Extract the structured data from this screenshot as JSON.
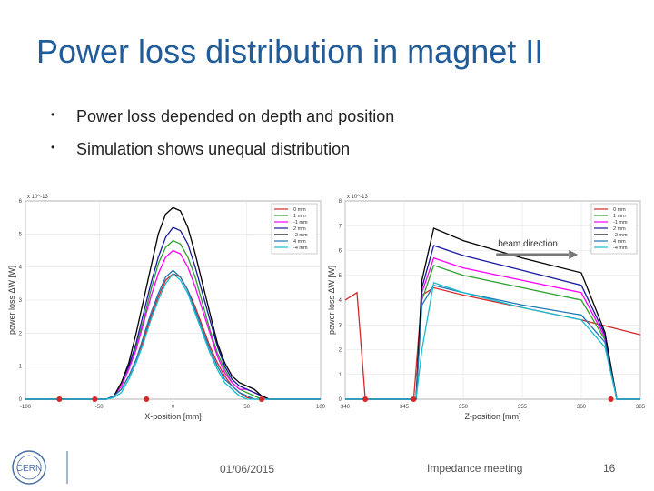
{
  "slide": {
    "title": "Power loss distribution in magnet II",
    "bullets": [
      "Power loss depended on depth and position",
      "Simulation shows unequal distribution"
    ],
    "footer": {
      "date": "01/06/2015",
      "meeting": "Impedance meeting",
      "page": "16"
    },
    "logo_text": "CERN"
  },
  "chart_data": [
    {
      "type": "line",
      "xlabel": "X-position [mm]",
      "ylabel": "power loss ΔW [W]",
      "exponent": "x 10^-13",
      "xlim": [
        -100,
        100
      ],
      "ylim": [
        0,
        6
      ],
      "xticks": [
        -100,
        -50,
        0,
        50,
        100
      ],
      "xtick_labels": [
        "-100",
        "-50",
        "0",
        "50",
        "100"
      ],
      "yticks": [
        0,
        1,
        2,
        3,
        4,
        5,
        6
      ],
      "ytick_labels": [
        "0",
        "1",
        "2",
        "3",
        "4",
        "5",
        "6"
      ],
      "legend": "top-right",
      "grid": true,
      "x": [
        -100,
        -90,
        -80,
        -70,
        -60,
        -50,
        -45,
        -40,
        -35,
        -30,
        -25,
        -20,
        -15,
        -10,
        -5,
        0,
        5,
        10,
        15,
        20,
        25,
        30,
        35,
        40,
        45,
        50,
        55,
        60,
        65,
        70,
        80,
        90,
        100
      ],
      "series": [
        {
          "name": "0 mm",
          "color": "#d62728",
          "values": [
            0,
            0,
            0,
            0,
            0,
            0,
            0,
            0.1,
            0.3,
            0.7,
            1.2,
            1.8,
            2.5,
            3.1,
            3.6,
            3.8,
            3.7,
            3.3,
            2.8,
            2.2,
            1.6,
            1.1,
            0.7,
            0.4,
            0.2,
            0.05,
            0,
            0,
            0,
            0,
            0,
            0,
            0
          ]
        },
        {
          "name": "1 mm",
          "color": "#2ca02c",
          "values": [
            0,
            0,
            0,
            0,
            0,
            0,
            0,
            0.1,
            0.4,
            0.9,
            1.6,
            2.4,
            3.3,
            4.1,
            4.6,
            4.8,
            4.7,
            4.3,
            3.7,
            2.9,
            2.1,
            1.4,
            0.9,
            0.5,
            0.3,
            0.2,
            0.1,
            0,
            0,
            0,
            0,
            0,
            0
          ]
        },
        {
          "name": "-1 mm",
          "color": "#ff00ff",
          "values": [
            0,
            0,
            0,
            0,
            0,
            0,
            0,
            0.1,
            0.4,
            0.9,
            1.5,
            2.3,
            3.1,
            3.8,
            4.3,
            4.5,
            4.4,
            4.0,
            3.4,
            2.7,
            2.0,
            1.3,
            0.8,
            0.5,
            0.3,
            0.3,
            0.2,
            0.1,
            0,
            0,
            0,
            0,
            0
          ]
        },
        {
          "name": "2 mm",
          "color": "#1a1a9e",
          "values": [
            0,
            0,
            0,
            0,
            0,
            0,
            0,
            0.1,
            0.5,
            1.0,
            1.7,
            2.6,
            3.5,
            4.3,
            4.9,
            5.2,
            5.1,
            4.7,
            4.0,
            3.2,
            2.4,
            1.6,
            1.0,
            0.6,
            0.4,
            0.3,
            0.2,
            0.1,
            0,
            0,
            0,
            0,
            0
          ]
        },
        {
          "name": "-2 mm",
          "color": "#000000",
          "values": [
            0,
            0,
            0,
            0,
            0,
            0,
            0,
            0.1,
            0.5,
            1.1,
            2.0,
            3.0,
            4.0,
            5.0,
            5.6,
            5.8,
            5.7,
            5.2,
            4.4,
            3.5,
            2.6,
            1.7,
            1.1,
            0.7,
            0.5,
            0.4,
            0.3,
            0.1,
            0,
            0,
            0,
            0,
            0
          ]
        },
        {
          "name": "4 mm",
          "color": "#1f77b4",
          "values": [
            0,
            0,
            0,
            0,
            0,
            0,
            0,
            0.1,
            0.3,
            0.7,
            1.2,
            1.9,
            2.6,
            3.2,
            3.7,
            3.9,
            3.7,
            3.3,
            2.7,
            2.1,
            1.5,
            1.0,
            0.6,
            0.4,
            0.2,
            0.1,
            0,
            0,
            0,
            0,
            0,
            0,
            0
          ]
        },
        {
          "name": "-4 mm",
          "color": "#17becf",
          "values": [
            0,
            0,
            0,
            0,
            0,
            0,
            0,
            0.05,
            0.2,
            0.6,
            1.1,
            1.7,
            2.4,
            3.0,
            3.5,
            3.8,
            3.6,
            3.2,
            2.6,
            2.0,
            1.4,
            0.9,
            0.5,
            0.3,
            0.1,
            0,
            0,
            0,
            0,
            0,
            0,
            0,
            0
          ]
        }
      ],
      "markers": {
        "color": "#d62728",
        "x": [
          -77,
          -53,
          -18,
          60
        ],
        "y": [
          0,
          0,
          0,
          0
        ]
      }
    },
    {
      "type": "line",
      "xlabel": "Z-position [mm]",
      "ylabel": "power loss ΔW [W]",
      "exponent": "x 10^-13",
      "annotation": "beam direction",
      "xlim": [
        340,
        365
      ],
      "ylim": [
        0,
        8
      ],
      "xticks": [
        340,
        345,
        350,
        355,
        360,
        365
      ],
      "xtick_labels": [
        "340",
        "345",
        "350",
        "355",
        "360",
        "365"
      ],
      "yticks": [
        0,
        1,
        2,
        3,
        4,
        5,
        6,
        7,
        8
      ],
      "ytick_labels": [
        "0",
        "1",
        "2",
        "3",
        "4",
        "5",
        "6",
        "7",
        "8"
      ],
      "legend": "top-right",
      "grid": true,
      "series": [
        {
          "name": "0 mm",
          "color": "#d62728",
          "x": [
            340,
            341,
            341.7,
            345.8,
            346.5,
            347.5,
            350,
            355,
            360,
            365
          ],
          "y": [
            4.0,
            4.3,
            0,
            0,
            4.2,
            4.5,
            4.2,
            3.7,
            3.2,
            2.6
          ]
        },
        {
          "name": "1 mm",
          "color": "#2ca02c",
          "x": [
            340,
            346,
            346.5,
            347.5,
            350,
            355,
            360,
            362,
            363,
            365
          ],
          "y": [
            0,
            0,
            4.0,
            5.4,
            5.0,
            4.5,
            4.0,
            2.4,
            0,
            0
          ]
        },
        {
          "name": "-1 mm",
          "color": "#ff00ff",
          "x": [
            340,
            346,
            346.5,
            347.5,
            350,
            355,
            360,
            362,
            363,
            365
          ],
          "y": [
            0,
            0,
            4.3,
            5.7,
            5.3,
            4.8,
            4.3,
            2.5,
            0,
            0
          ]
        },
        {
          "name": "2 mm",
          "color": "#1a1a9e",
          "x": [
            340,
            346,
            346.5,
            347.5,
            350,
            355,
            360,
            362,
            363,
            365
          ],
          "y": [
            0,
            0,
            4.5,
            6.2,
            5.8,
            5.2,
            4.6,
            2.6,
            0,
            0
          ]
        },
        {
          "name": "-2 mm",
          "color": "#000000",
          "x": [
            340,
            346,
            346.5,
            347.5,
            350,
            355,
            360,
            362,
            363,
            365
          ],
          "y": [
            0,
            0,
            4.8,
            6.9,
            6.4,
            5.7,
            5.1,
            2.7,
            0,
            0
          ]
        },
        {
          "name": "4 mm",
          "color": "#1f77b4",
          "x": [
            340,
            346,
            346.5,
            347.5,
            350,
            355,
            360,
            362,
            363,
            365
          ],
          "y": [
            0,
            0,
            3.8,
            4.6,
            4.3,
            3.8,
            3.4,
            2.3,
            0,
            0
          ]
        },
        {
          "name": "-4 mm",
          "color": "#17becf",
          "x": [
            340,
            346,
            346.5,
            347.5,
            350,
            355,
            360,
            362,
            363,
            365
          ],
          "y": [
            0,
            0,
            2.0,
            4.7,
            4.3,
            3.7,
            3.2,
            2.1,
            0,
            0
          ]
        }
      ],
      "markers": {
        "color": "#d62728",
        "x": [
          341.7,
          345.8,
          362.5
        ],
        "y": [
          0,
          0,
          0
        ]
      }
    }
  ]
}
